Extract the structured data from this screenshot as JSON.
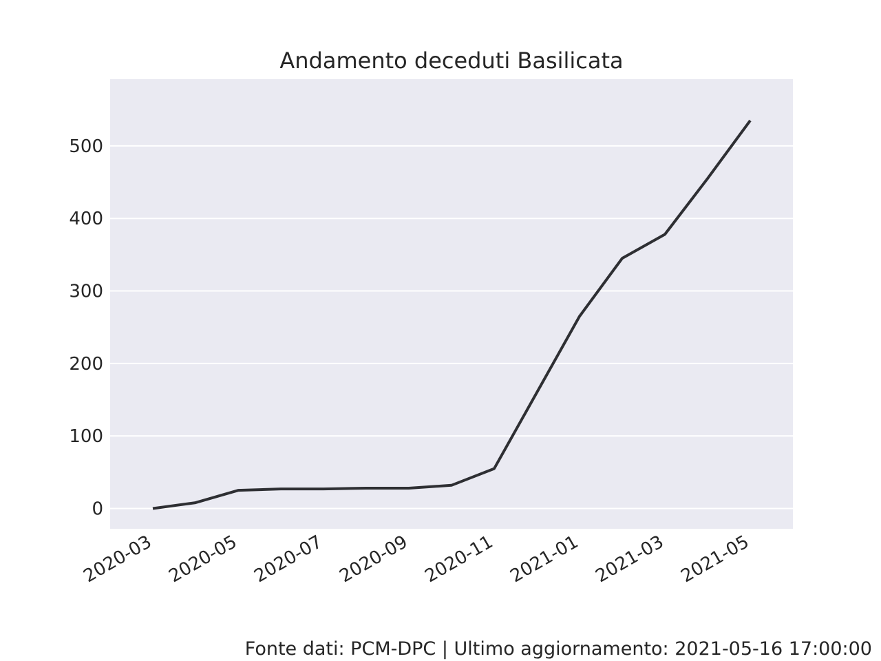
{
  "chart_data": {
    "type": "line",
    "title": "Andamento deceduti Basilicata",
    "footer": "Fonte dati: PCM-DPC | Ultimo aggiornamento: 2021-05-16 17:00:00",
    "x": [
      "2020-03",
      "2020-04",
      "2020-05",
      "2020-06",
      "2020-07",
      "2020-08",
      "2020-09",
      "2020-10",
      "2020-11",
      "2020-12",
      "2021-01",
      "2021-02",
      "2021-03",
      "2021-04",
      "2021-05"
    ],
    "values": [
      0,
      8,
      25,
      27,
      27,
      28,
      28,
      32,
      55,
      160,
      265,
      345,
      378,
      455,
      535
    ],
    "color": "#2e2f33",
    "xlim": [
      "2020-02",
      "2021-06"
    ],
    "xticks": [
      "2020-03",
      "2020-05",
      "2020-07",
      "2020-09",
      "2020-11",
      "2021-01",
      "2021-03",
      "2021-05"
    ],
    "ylim": [
      -28,
      592
    ],
    "yticks": [
      0,
      100,
      200,
      300,
      400,
      500
    ],
    "grid": true
  }
}
